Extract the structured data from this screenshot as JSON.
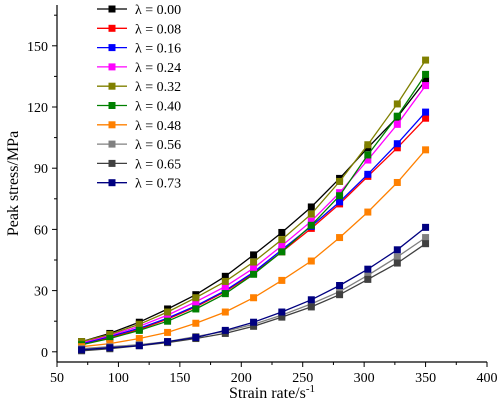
{
  "chart_data": {
    "type": "line",
    "title": "",
    "xlabel": "Strain rate/s",
    "xlabel_superscript": "-1",
    "ylabel": "Peak stress/MPa",
    "xlim": [
      50,
      400
    ],
    "ylim": [
      -5,
      170
    ],
    "x_ticks": [
      50,
      100,
      150,
      200,
      250,
      300,
      350,
      400
    ],
    "y_ticks": [
      0,
      30,
      60,
      90,
      120,
      150
    ],
    "grid": false,
    "legend_position": "top-left",
    "x": [
      70,
      93,
      117,
      140,
      163,
      187,
      210,
      233,
      257,
      280,
      303,
      327,
      350
    ],
    "series": [
      {
        "name": "λ = 0.00",
        "color": "#000000",
        "values": [
          5,
          9,
          14.5,
          21,
          28,
          37,
          47.5,
          58.5,
          71,
          85,
          100,
          115,
          133
        ]
      },
      {
        "name": "λ = 0.08",
        "color": "#ff0000",
        "values": [
          4,
          7,
          11,
          16,
          22,
          29.5,
          38.5,
          49,
          60.5,
          72.5,
          86,
          100,
          114.5
        ]
      },
      {
        "name": "λ = 0.16",
        "color": "#0000ff",
        "values": [
          4,
          7.5,
          11.5,
          16.5,
          22.5,
          30,
          39,
          50,
          61.5,
          73.5,
          87,
          102,
          117.5
        ]
      },
      {
        "name": "λ = 0.24",
        "color": "#ff00ff",
        "values": [
          4.5,
          8,
          12.5,
          18,
          24.5,
          32,
          41,
          52,
          64,
          78,
          94,
          111.5,
          130.5
        ]
      },
      {
        "name": "λ = 0.32",
        "color": "#808000",
        "values": [
          5,
          8.5,
          13.5,
          19.5,
          26.5,
          34.5,
          44,
          55,
          67.5,
          83.5,
          101.5,
          121.5,
          143
        ]
      },
      {
        "name": "λ = 0.40",
        "color": "#008000",
        "values": [
          3.5,
          6.5,
          10.5,
          15,
          21,
          28.5,
          38,
          49,
          62,
          76.5,
          96.5,
          115.5,
          136
        ]
      },
      {
        "name": "λ = 0.48",
        "color": "#ff8000",
        "values": [
          2.5,
          4,
          6.5,
          9.5,
          14,
          19.5,
          26.5,
          35,
          44.5,
          56,
          68.5,
          83,
          99
        ]
      },
      {
        "name": "λ = 0.56",
        "color": "#808080",
        "values": [
          1.5,
          2.5,
          3.5,
          5,
          7.5,
          10,
          13.5,
          18,
          23.5,
          29.5,
          37.5,
          46.5,
          56
        ]
      },
      {
        "name": "λ = 0.65",
        "color": "#404040",
        "values": [
          0.5,
          1.5,
          3,
          4.5,
          6.5,
          9,
          12.5,
          17,
          22,
          28,
          35.5,
          43.5,
          53
        ]
      },
      {
        "name": "λ = 0.73",
        "color": "#000080",
        "values": [
          1,
          2,
          3,
          5,
          7,
          10.5,
          14.5,
          19.5,
          25.5,
          32.5,
          40.5,
          50,
          61
        ]
      }
    ]
  }
}
